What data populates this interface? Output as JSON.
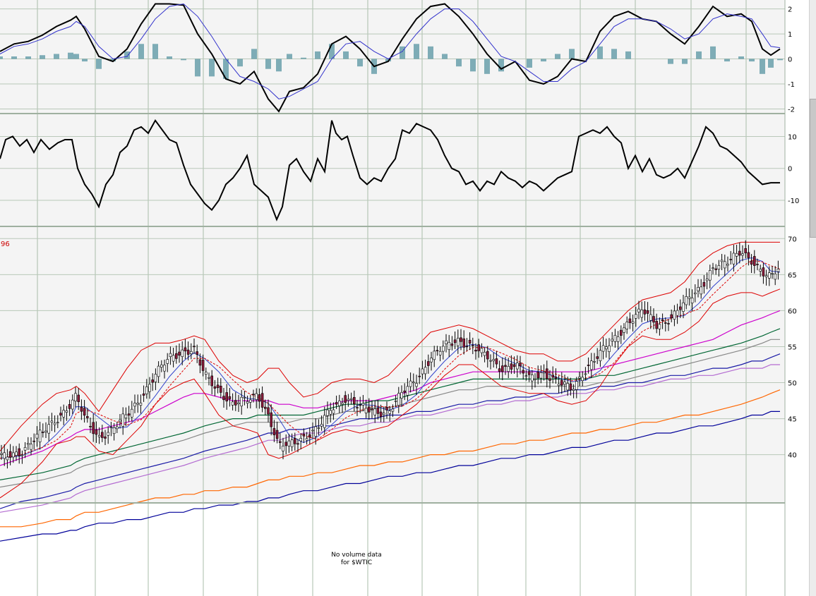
{
  "chart_data": [
    {
      "panel": "MACD",
      "type": "line",
      "y_ticks": [
        "2",
        "1",
        "0",
        "-1",
        "-2"
      ],
      "ylim": [
        -2.1,
        2.3
      ],
      "x": [
        0,
        20,
        40,
        60,
        80,
        100,
        108,
        120,
        140,
        160,
        180,
        200,
        220,
        240,
        260,
        280,
        300,
        320,
        340,
        360,
        380,
        395,
        410,
        430,
        450,
        470,
        490,
        510,
        530,
        550,
        570,
        590,
        610,
        630,
        650,
        670,
        690,
        710,
        730,
        750,
        770,
        790,
        810,
        830,
        850,
        870,
        890,
        910,
        930,
        950,
        970,
        990,
        1010,
        1030,
        1050,
        1065,
        1080,
        1092,
        1105
      ],
      "series": [
        {
          "color": "#000000",
          "values": [
            0.3,
            0.6,
            0.7,
            0.95,
            1.3,
            1.55,
            1.7,
            1.2,
            0.1,
            -0.1,
            0.4,
            1.4,
            2.2,
            2.2,
            2.15,
            1.0,
            0.2,
            -0.8,
            -1.0,
            -0.5,
            -1.6,
            -2.1,
            -1.3,
            -1.15,
            -0.6,
            0.6,
            0.9,
            0.4,
            -0.3,
            -0.1,
            0.8,
            1.6,
            2.1,
            2.2,
            1.7,
            1.0,
            0.2,
            -0.4,
            -0.1,
            -0.85,
            -1.0,
            -0.7,
            0.0,
            -0.1,
            1.1,
            1.7,
            1.9,
            1.6,
            1.5,
            1.0,
            0.6,
            1.3,
            2.1,
            1.7,
            1.8,
            1.5,
            0.4,
            0.15,
            0.4
          ]
        },
        {
          "color": "#3333cc",
          "values": [
            0.2,
            0.5,
            0.6,
            0.8,
            1.1,
            1.3,
            1.5,
            1.3,
            0.5,
            0.0,
            0.1,
            0.8,
            1.6,
            2.1,
            2.2,
            1.7,
            0.9,
            0.0,
            -0.7,
            -0.9,
            -1.2,
            -1.6,
            -1.5,
            -1.2,
            -0.9,
            0.0,
            0.6,
            0.7,
            0.3,
            0.0,
            0.3,
            1.0,
            1.6,
            2.0,
            2.0,
            1.5,
            0.8,
            0.1,
            -0.1,
            -0.5,
            -0.9,
            -0.9,
            -0.4,
            -0.1,
            0.6,
            1.3,
            1.6,
            1.6,
            1.5,
            1.2,
            0.8,
            1.0,
            1.6,
            1.8,
            1.7,
            1.6,
            1.0,
            0.5,
            0.45
          ]
        }
      ],
      "histogram": [
        0.1,
        0.1,
        0.1,
        0.15,
        0.2,
        0.25,
        0.2,
        -0.1,
        -0.4,
        -0.1,
        0.3,
        0.6,
        0.6,
        0.1,
        -0.05,
        -0.7,
        -0.7,
        -0.8,
        -0.3,
        0.4,
        -0.4,
        -0.5,
        0.2,
        0.05,
        0.3,
        0.6,
        0.3,
        -0.3,
        -0.6,
        -0.1,
        0.5,
        0.6,
        0.5,
        0.2,
        -0.3,
        -0.5,
        -0.6,
        -0.5,
        0.0,
        -0.35,
        -0.1,
        0.2,
        0.4,
        0.0,
        0.5,
        0.4,
        0.3,
        0.0,
        0.0,
        -0.2,
        -0.2,
        0.3,
        0.5,
        -0.1,
        0.1,
        -0.1,
        -0.6,
        -0.35,
        -0.05
      ]
    },
    {
      "panel": "Oscillator",
      "type": "line",
      "y_ticks": [
        "10",
        "0",
        "-10"
      ],
      "ylim": [
        -17.5,
        16.5
      ],
      "x": [
        0,
        8,
        18,
        28,
        38,
        48,
        58,
        70,
        82,
        92,
        102,
        110,
        120,
        130,
        140,
        150,
        160,
        170,
        180,
        190,
        200,
        210,
        220,
        230,
        240,
        250,
        260,
        270,
        280,
        290,
        300,
        310,
        320,
        330,
        340,
        350,
        360,
        370,
        380,
        392,
        400,
        410,
        420,
        430,
        440,
        450,
        460,
        470,
        476,
        484,
        492,
        500,
        510,
        520,
        530,
        540,
        550,
        560,
        570,
        580,
        590,
        600,
        610,
        620,
        630,
        640,
        650,
        660,
        670,
        680,
        690,
        700,
        710,
        720,
        730,
        740,
        750,
        760,
        770,
        780,
        790,
        800,
        810,
        820,
        830,
        840,
        850,
        860,
        870,
        880,
        890,
        900,
        910,
        920,
        930,
        940,
        950,
        960,
        970,
        980,
        990,
        1000,
        1010,
        1020,
        1030,
        1040,
        1050,
        1060,
        1070,
        1080,
        1092,
        1105
      ],
      "values": [
        3,
        9,
        10,
        7,
        9,
        5,
        9,
        6,
        8,
        9,
        9,
        0,
        -5,
        -8,
        -12,
        -5,
        -2,
        5,
        7,
        12,
        13,
        11,
        15,
        12,
        9,
        8,
        1,
        -5,
        -8,
        -11,
        -13,
        -10,
        -5,
        -3,
        0,
        4,
        -5,
        -7,
        -9,
        -16,
        -12,
        1,
        3,
        -1,
        -4,
        3,
        -1,
        15,
        11,
        9,
        10,
        4,
        -3,
        -5,
        -3,
        -4,
        0,
        3,
        12,
        11,
        14,
        13,
        12,
        9,
        4,
        0,
        -1,
        -5,
        -4,
        -7,
        -4,
        -5,
        -1,
        -3,
        -4,
        -6,
        -4,
        -5,
        -7,
        -5,
        -3,
        -2,
        -1,
        10,
        11,
        12,
        11,
        13,
        10,
        8,
        0,
        4,
        -1,
        3,
        -2,
        -3,
        -2,
        0,
        -3,
        2,
        7,
        13,
        11,
        7,
        6,
        4,
        2,
        -1,
        -3,
        -5,
        -4.5,
        -4.5
      ]
    },
    {
      "panel": "Price",
      "type": "line",
      "title_fragment": "96",
      "y_ticks": [
        "70",
        "65",
        "60",
        "55",
        "50",
        "45",
        "40"
      ],
      "ylim": [
        33.6,
        71.4
      ],
      "x": [
        0,
        30,
        60,
        80,
        100,
        108,
        120,
        140,
        160,
        180,
        200,
        220,
        240,
        260,
        275,
        290,
        310,
        330,
        350,
        365,
        380,
        395,
        410,
        430,
        450,
        470,
        490,
        510,
        530,
        550,
        570,
        590,
        610,
        630,
        650,
        670,
        690,
        710,
        730,
        750,
        770,
        790,
        810,
        830,
        850,
        870,
        890,
        910,
        930,
        950,
        970,
        990,
        1010,
        1030,
        1050,
        1065,
        1080,
        1092,
        1105
      ],
      "close": [
        39.5,
        40.5,
        43,
        45,
        47,
        48,
        45,
        42.5,
        43.5,
        45.5,
        48,
        51,
        53.5,
        54.5,
        54.5,
        51,
        49,
        47,
        47.5,
        48.5,
        45.5,
        41,
        41.5,
        42.5,
        43.5,
        46.5,
        48,
        46.5,
        46,
        46,
        48.5,
        50.5,
        53.5,
        55,
        56,
        55,
        53.5,
        52,
        52.5,
        50.5,
        51.5,
        50,
        49,
        52,
        54,
        56,
        58.5,
        60,
        58,
        59,
        61,
        63,
        66,
        66.5,
        68.5,
        67,
        65,
        64.5,
        66.5
      ],
      "bands": {
        "upper": [
          40.5,
          44,
          47,
          48.5,
          49,
          49.5,
          48.5,
          46,
          49,
          52,
          54.5,
          55.5,
          55.5,
          56,
          56.5,
          56,
          53,
          51,
          50,
          50.5,
          52,
          52,
          50,
          48,
          48.5,
          50,
          50.5,
          50.5,
          50,
          51,
          53,
          55,
          57,
          57.5,
          58,
          57.5,
          56.5,
          55.5,
          54.5,
          54,
          54,
          53,
          53,
          54,
          56,
          58,
          60,
          61.5,
          62,
          62.5,
          64,
          66.5,
          68,
          69,
          69.5,
          69.5,
          69.5,
          69.5,
          69.5
        ],
        "lower": [
          34,
          36,
          39,
          41.5,
          42,
          42.5,
          42.5,
          40.5,
          40,
          42,
          44,
          47,
          49,
          50,
          50.5,
          48.5,
          45.5,
          44,
          43.5,
          43,
          40,
          39.5,
          40,
          41,
          42,
          43,
          43.5,
          43,
          43.5,
          44,
          45.5,
          47,
          49,
          51,
          52.5,
          52.5,
          51,
          49.5,
          49,
          48.5,
          48.5,
          47.5,
          47,
          47.5,
          49.5,
          52.5,
          55,
          56.5,
          56,
          56,
          57,
          58.5,
          61,
          62,
          62.5,
          62.5,
          62,
          62.5,
          63
        ]
      },
      "moving_averages": [
        {
          "color": "#cc00cc",
          "values": [
            38.5,
            39.5,
            40.5,
            41.5,
            42.5,
            43,
            43.5,
            43.5,
            44,
            44.5,
            45,
            46,
            47,
            48,
            48.5,
            48.5,
            48,
            47.5,
            47.5,
            47.5,
            47.5,
            47,
            47,
            46.5,
            46.5,
            47,
            47.5,
            47.5,
            47.5,
            48,
            48.5,
            49,
            50,
            50.5,
            51,
            51.5,
            51.5,
            51.5,
            51.5,
            51.5,
            51.5,
            51.5,
            51.5,
            51.5,
            52,
            52.5,
            53,
            53.5,
            54,
            54.5,
            55,
            55.5,
            56,
            57,
            58,
            58.5,
            59,
            59.5,
            60
          ]
        },
        {
          "color": "#006633",
          "values": [
            36.5,
            37,
            37.5,
            38,
            38.5,
            39,
            39.5,
            40,
            40.5,
            41,
            41.5,
            42,
            42.5,
            43,
            43.5,
            44,
            44.5,
            45,
            45,
            45.5,
            45.5,
            45.5,
            45.5,
            45.5,
            46,
            46.5,
            47,
            47,
            47.5,
            47.5,
            48,
            48.5,
            49,
            49.5,
            50,
            50.5,
            50.5,
            50.5,
            50.5,
            50.5,
            50.5,
            50.5,
            50.5,
            50.5,
            51,
            51,
            51.5,
            52,
            52.5,
            53,
            53.5,
            54,
            54.5,
            55,
            55.5,
            56,
            56.5,
            57,
            57.5
          ]
        },
        {
          "color": "#888888",
          "values": [
            35.5,
            36,
            36.5,
            37,
            37.5,
            38,
            38.5,
            39,
            39.5,
            40,
            40.5,
            41,
            41.5,
            42,
            42.5,
            43,
            43.5,
            44,
            44.5,
            44.5,
            44.5,
            44.5,
            44.5,
            45,
            45,
            45.5,
            46,
            46,
            46.5,
            46.5,
            47,
            47.5,
            48,
            48.5,
            49,
            49,
            49.5,
            49.5,
            49.5,
            49.5,
            49.5,
            49.5,
            49.5,
            49.5,
            50,
            50,
            50.5,
            51,
            51.5,
            52,
            52.5,
            53,
            53.5,
            54,
            54.5,
            55,
            55.5,
            56,
            56
          ]
        },
        {
          "color": "#1a1aa6",
          "values": [
            32.5,
            33.5,
            34,
            34.5,
            35,
            35.5,
            36,
            36.5,
            37,
            37.5,
            38,
            38.5,
            39,
            39.5,
            40,
            40.5,
            41,
            41.5,
            42,
            42.5,
            43,
            43,
            43.5,
            43.5,
            44,
            44,
            44.5,
            45,
            45,
            45.5,
            45.5,
            46,
            46,
            46.5,
            47,
            47,
            47.5,
            47.5,
            48,
            48,
            48.5,
            48.5,
            49,
            49,
            49.5,
            49.5,
            50,
            50,
            50.5,
            51,
            51,
            51.5,
            52,
            52,
            52.5,
            53,
            53,
            53.5,
            54
          ]
        },
        {
          "color": "#b36bd1",
          "values": [
            32,
            32.5,
            33,
            33.5,
            34,
            34.5,
            35,
            35.5,
            36,
            36.5,
            37,
            37.5,
            38,
            38.5,
            39,
            39.5,
            40,
            40.5,
            41,
            41.5,
            42,
            42,
            42.5,
            43,
            43,
            43.5,
            44,
            44,
            44.5,
            44.5,
            45,
            45.5,
            45.5,
            46,
            46.5,
            46.5,
            47,
            47,
            47.5,
            47.5,
            48,
            48,
            48.5,
            48.5,
            49,
            49,
            49.5,
            49.5,
            50,
            50.5,
            50.5,
            51,
            51,
            51.5,
            52,
            52,
            52,
            52.5,
            52.5
          ]
        },
        {
          "color": "#ff6600",
          "values": [
            30,
            30,
            30.5,
            31,
            31,
            31.5,
            32,
            32,
            32.5,
            33,
            33.5,
            34,
            34,
            34.5,
            34.5,
            35,
            35,
            35.5,
            35.5,
            36,
            36.5,
            36.5,
            37,
            37,
            37.5,
            37.5,
            38,
            38.5,
            38.5,
            39,
            39,
            39.5,
            40,
            40,
            40.5,
            40.5,
            41,
            41.5,
            41.5,
            42,
            42,
            42.5,
            43,
            43,
            43.5,
            43.5,
            44,
            44.5,
            44.5,
            45,
            45.5,
            45.5,
            46,
            46.5,
            47,
            47.5,
            48,
            48.5,
            49
          ]
        },
        {
          "color": "#000099",
          "values": [
            28,
            28.5,
            29,
            29,
            29.5,
            29.5,
            30,
            30.5,
            30.5,
            31,
            31,
            31.5,
            32,
            32,
            32.5,
            32.5,
            33,
            33,
            33.5,
            33.5,
            34,
            34,
            34.5,
            35,
            35,
            35.5,
            36,
            36,
            36.5,
            37,
            37,
            37.5,
            37.5,
            38,
            38.5,
            38.5,
            39,
            39.5,
            39.5,
            40,
            40,
            40.5,
            41,
            41,
            41.5,
            42,
            42,
            42.5,
            43,
            43,
            43.5,
            44,
            44,
            44.5,
            45,
            45.5,
            45.5,
            46,
            46
          ]
        }
      ]
    }
  ],
  "volume_note": {
    "line1": "No volume data",
    "line2": "for $WTIC"
  }
}
